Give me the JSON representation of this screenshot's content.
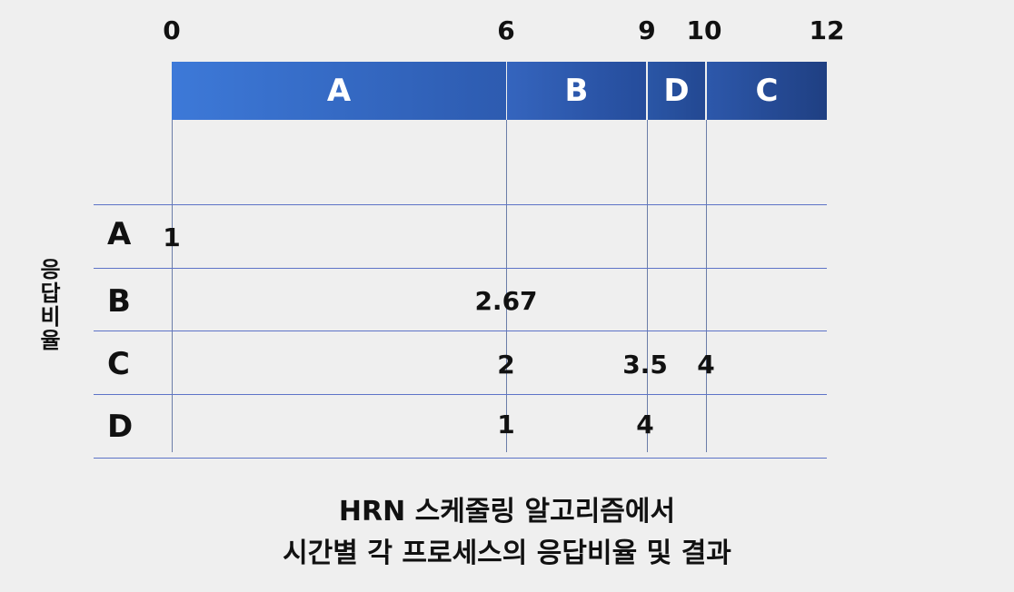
{
  "timeline": {
    "ticks": [
      "0",
      "6",
      "9",
      "10",
      "12"
    ],
    "segments": [
      {
        "label": "A",
        "start": 0,
        "end": 6,
        "color_start": "#3d79d8",
        "color_end": "#2d5bb0"
      },
      {
        "label": "B",
        "start": 6,
        "end": 9,
        "color_start": "#3565be",
        "color_end": "#254c9b"
      },
      {
        "label": "D",
        "start": 9,
        "end": 10,
        "color_start": "#2a56a6",
        "color_end": "#234892"
      },
      {
        "label": "C",
        "start": 10,
        "end": 12,
        "color_start": "#2d58ab",
        "color_end": "#1f3f82"
      }
    ]
  },
  "table": {
    "y_label": "응답비율",
    "rows": [
      {
        "process": "A",
        "values": [
          {
            "time": 0,
            "ratio": "1"
          }
        ]
      },
      {
        "process": "B",
        "values": [
          {
            "time": 6,
            "ratio": "2.67"
          }
        ]
      },
      {
        "process": "C",
        "values": [
          {
            "time": 6,
            "ratio": "2"
          },
          {
            "time": 9,
            "ratio": "3.5"
          },
          {
            "time": 10,
            "ratio": "4"
          }
        ]
      },
      {
        "process": "D",
        "values": [
          {
            "time": 6,
            "ratio": "1"
          },
          {
            "time": 9,
            "ratio": "4"
          }
        ]
      }
    ]
  },
  "caption": {
    "line1": "HRN 스케줄링 알고리즘에서",
    "line2": "시간별 각 프로세스의 응답비율 및 결과"
  }
}
